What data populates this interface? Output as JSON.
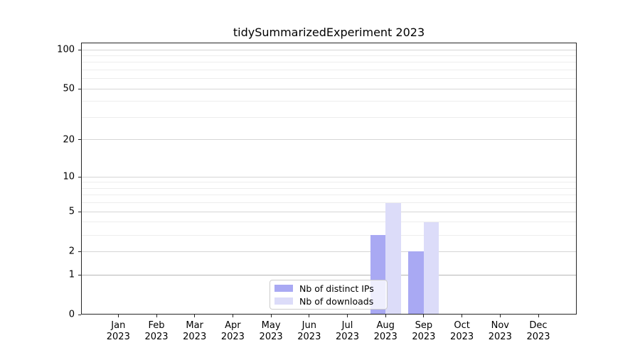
{
  "title": "tidySummarizedExperiment 2023",
  "axes": {
    "y_tick_labels": [
      "0",
      "1",
      "2",
      "5",
      "10",
      "20",
      "50",
      "100"
    ],
    "x_ticks": [
      {
        "month": "Jan",
        "year": "2023"
      },
      {
        "month": "Feb",
        "year": "2023"
      },
      {
        "month": "Mar",
        "year": "2023"
      },
      {
        "month": "Apr",
        "year": "2023"
      },
      {
        "month": "May",
        "year": "2023"
      },
      {
        "month": "Jun",
        "year": "2023"
      },
      {
        "month": "Jul",
        "year": "2023"
      },
      {
        "month": "Aug",
        "year": "2023"
      },
      {
        "month": "Sep",
        "year": "2023"
      },
      {
        "month": "Oct",
        "year": "2023"
      },
      {
        "month": "Nov",
        "year": "2023"
      },
      {
        "month": "Dec",
        "year": "2023"
      }
    ]
  },
  "legend": {
    "items": [
      {
        "label": "Nb of distinct IPs",
        "color": "#a9a9f3"
      },
      {
        "label": "Nb of downloads",
        "color": "#dcdcf9"
      }
    ]
  },
  "colors": {
    "bar_distinct_ips": "#a9a9f3",
    "bar_downloads": "#dcdcf9",
    "grid_major": "#d6d6d6",
    "grid_minor": "#ededed",
    "grid_unit_line": "#b5b5b5",
    "axis": "#262626"
  },
  "chart_data": {
    "type": "bar",
    "title": "tidySummarizedExperiment 2023",
    "categories": [
      "Jan 2023",
      "Feb 2023",
      "Mar 2023",
      "Apr 2023",
      "May 2023",
      "Jun 2023",
      "Jul 2023",
      "Aug 2023",
      "Sep 2023",
      "Oct 2023",
      "Nov 2023",
      "Dec 2023"
    ],
    "series": [
      {
        "name": "Nb of distinct IPs",
        "color": "#a9a9f3",
        "values": [
          0,
          0,
          0,
          0,
          0,
          0,
          0,
          3,
          2,
          0,
          0,
          0
        ]
      },
      {
        "name": "Nb of downloads",
        "color": "#dcdcf9",
        "values": [
          0,
          0,
          0,
          0,
          0,
          0,
          0,
          6,
          4,
          0,
          0,
          0
        ]
      }
    ],
    "xlabel": "",
    "ylabel": "",
    "yscale": "log1p",
    "ylim": [
      0,
      113
    ],
    "y_major_ticks": [
      0,
      1,
      2,
      5,
      10,
      20,
      50,
      100
    ],
    "y_minor_ticks": [
      3,
      4,
      6,
      7,
      8,
      9,
      30,
      40,
      60,
      70,
      80,
      90
    ],
    "grid": true,
    "legend_position": "lower center"
  }
}
